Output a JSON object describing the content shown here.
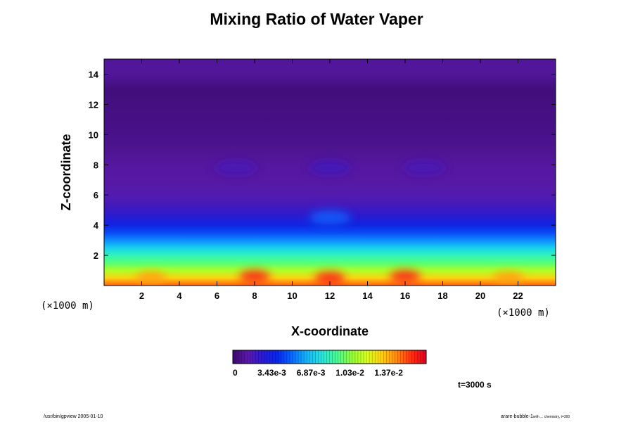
{
  "title": "Mixing Ratio of Water Vaper",
  "time_label": "t=3000 s",
  "footer_left": "/usr/bin/gpview 2005-01-10",
  "footer_right_main": "arare-bubble-1",
  "footer_right_sub": "with ... chemistry, t=300",
  "colors": {
    "background": "#ffffff",
    "frame": "#000000",
    "palette": [
      "#3a0a6e",
      "#5a1aa8",
      "#2a1ad0",
      "#0828e8",
      "#0a6aff",
      "#10b8ff",
      "#20e8e0",
      "#40ff90",
      "#90ff30",
      "#d8ff20",
      "#ffd010",
      "#ff8a10",
      "#ff3010",
      "#e00020"
    ]
  },
  "chart_data": {
    "type": "heatmap",
    "title": "Mixing Ratio of Water Vaper",
    "xlabel": "X-coordinate",
    "ylabel": "Z-coordinate",
    "x_unit": "(×1000 m)",
    "z_unit": "(×1000 m)",
    "xlim": [
      0,
      24
    ],
    "ylim": [
      0,
      15
    ],
    "x_ticks": [
      2,
      4,
      6,
      8,
      10,
      12,
      14,
      16,
      18,
      20,
      22
    ],
    "y_ticks": [
      2,
      4,
      6,
      8,
      10,
      12,
      14
    ],
    "colorbar": {
      "min": 0,
      "max": 0.017,
      "tick_labels": [
        "0",
        "3.43e-3",
        "6.87e-3",
        "1.03e-2",
        "1.37e-2"
      ],
      "tick_values": [
        0,
        0.00343,
        0.00687,
        0.0103,
        0.0137
      ]
    },
    "vertical_profile": [
      {
        "z": 0.0,
        "value": 0.015
      },
      {
        "z": 0.5,
        "value": 0.013
      },
      {
        "z": 1.0,
        "value": 0.011
      },
      {
        "z": 1.5,
        "value": 0.0095
      },
      {
        "z": 2.0,
        "value": 0.0085
      },
      {
        "z": 2.5,
        "value": 0.0072
      },
      {
        "z": 3.0,
        "value": 0.0058
      },
      {
        "z": 3.5,
        "value": 0.0046
      },
      {
        "z": 4.0,
        "value": 0.0036
      },
      {
        "z": 4.5,
        "value": 0.0028
      },
      {
        "z": 5.0,
        "value": 0.0022
      },
      {
        "z": 5.5,
        "value": 0.0018
      },
      {
        "z": 6.0,
        "value": 0.0015
      },
      {
        "z": 7.0,
        "value": 0.0012
      },
      {
        "z": 8.0,
        "value": 0.0011
      },
      {
        "z": 9.0,
        "value": 0.0008
      },
      {
        "z": 10.0,
        "value": 0.0006
      },
      {
        "z": 11.0,
        "value": 0.0005
      },
      {
        "z": 12.0,
        "value": 0.0004
      },
      {
        "z": 13.0,
        "value": 0.0003
      },
      {
        "z": 14.0,
        "value": 0.001
      },
      {
        "z": 15.0,
        "value": 0.001
      }
    ],
    "features": [
      {
        "x": 8.0,
        "z": 0.6,
        "value": 0.016
      },
      {
        "x": 12.0,
        "z": 0.5,
        "value": 0.016
      },
      {
        "x": 16.0,
        "z": 0.6,
        "value": 0.016
      },
      {
        "x": 2.5,
        "z": 0.5,
        "value": 0.014
      },
      {
        "x": 21.5,
        "z": 0.5,
        "value": 0.014
      },
      {
        "x": 12.0,
        "z": 4.5,
        "value": 0.005
      },
      {
        "x": 12.0,
        "z": 7.8,
        "value": 0.002
      },
      {
        "x": 7.0,
        "z": 7.8,
        "value": 0.0018
      },
      {
        "x": 17.0,
        "z": 7.8,
        "value": 0.0018
      }
    ]
  }
}
